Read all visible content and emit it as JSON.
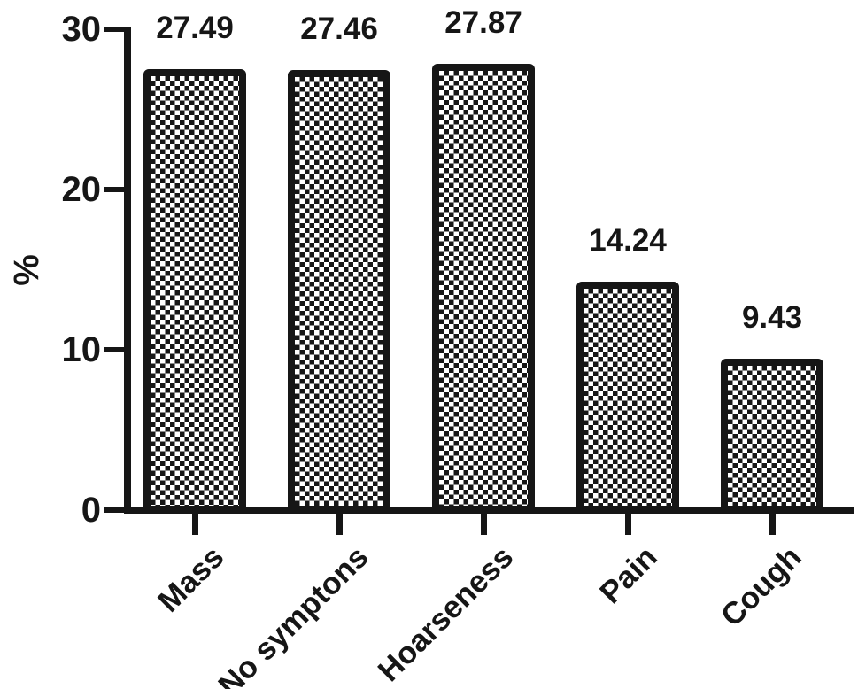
{
  "chart_data": {
    "type": "bar",
    "title": "",
    "categories": [
      "Mass",
      "No symptons",
      "Hoarseness",
      "Pain",
      "Cough"
    ],
    "values": [
      27.49,
      27.46,
      27.87,
      14.24,
      9.43
    ],
    "value_labels": [
      "27.49",
      "27.46",
      "27.87",
      "14.24",
      "9.43"
    ],
    "xlabel": "",
    "ylabel": "%",
    "yticks": [
      0,
      10,
      20,
      30
    ],
    "ytick_labels": [
      "0",
      "10",
      "20",
      "30"
    ],
    "ylim": [
      0,
      30
    ],
    "grid": "off",
    "legend": "none",
    "bar_fill_pattern": "checkerboard",
    "bar_border_color": "#161616",
    "bar_pattern_color": "#161616",
    "background_color": "#ffffff",
    "xtick_label_rotation_deg": -45
  }
}
